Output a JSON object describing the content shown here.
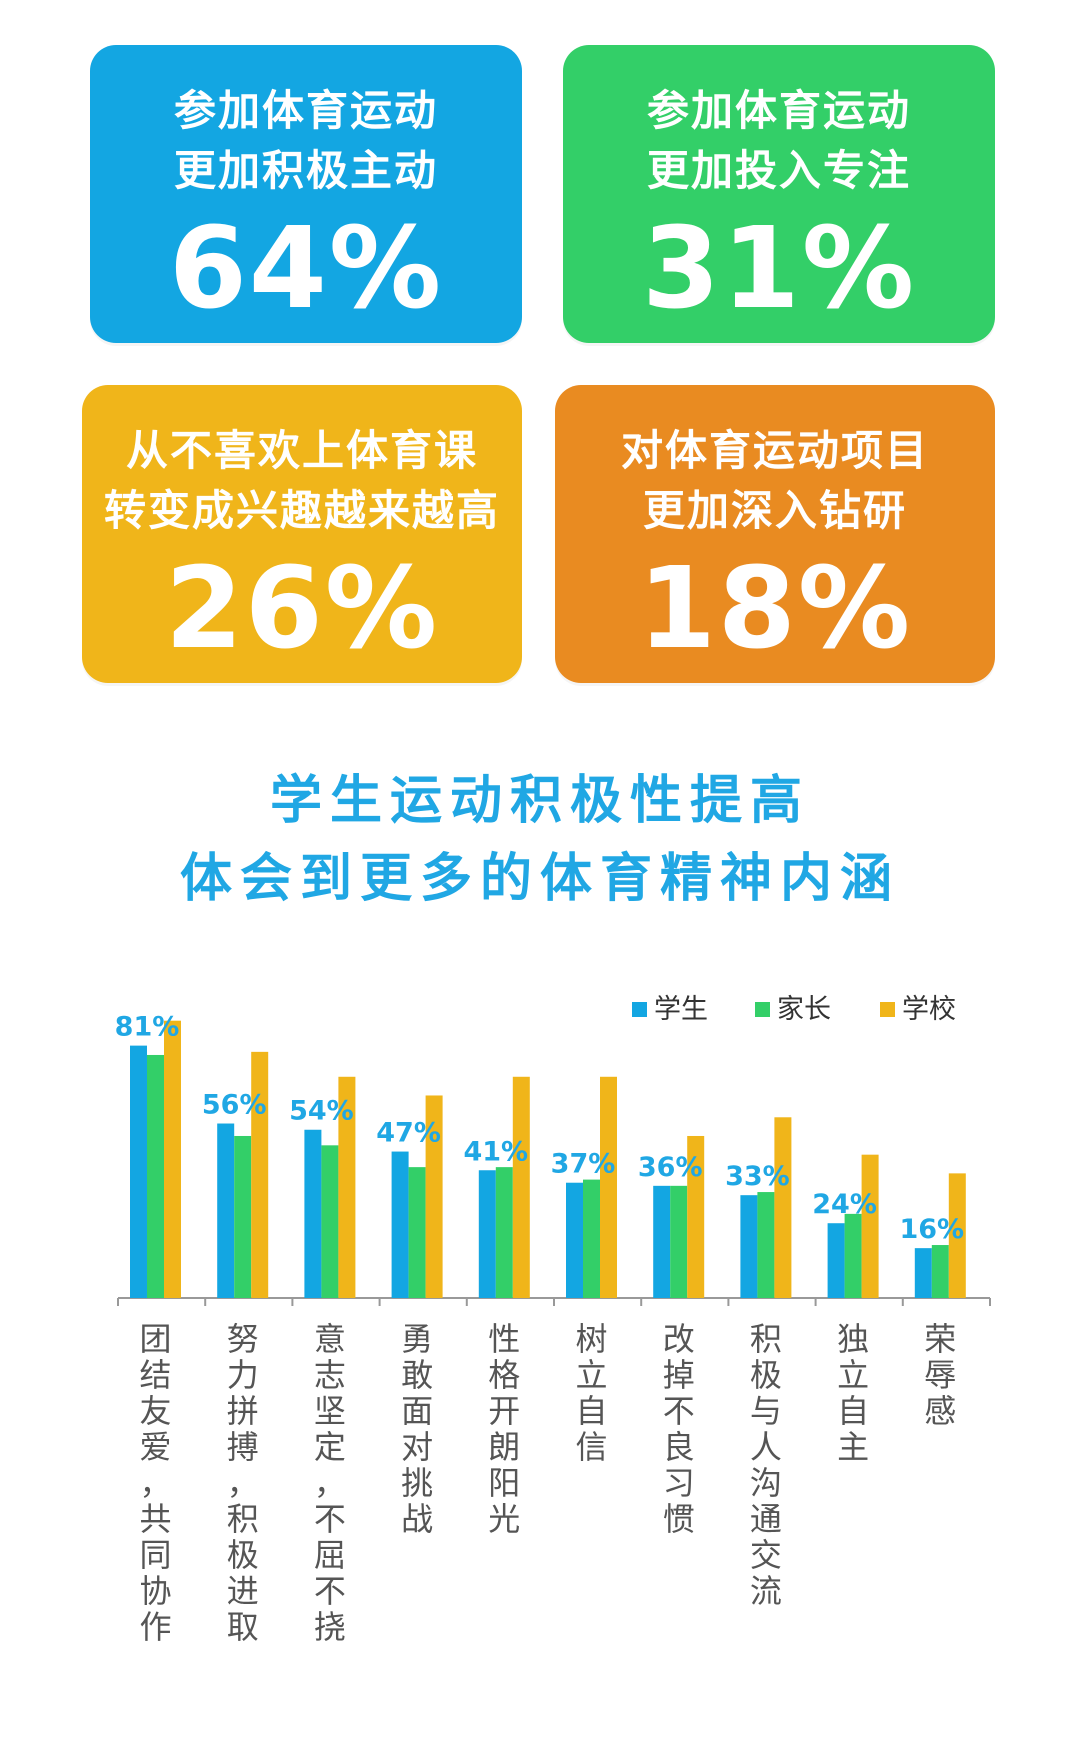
{
  "cards": [
    {
      "line1": "参加体育运动",
      "line2": "更加积极主动",
      "value": "64%",
      "color": "#13a6e2"
    },
    {
      "line1": "参加体育运动",
      "line2": "更加投入专注",
      "value": "31%",
      "color": "#33cf68"
    },
    {
      "line1": "从不喜欢上体育课",
      "line2": "转变成兴趣越来越高",
      "value": "26%",
      "color": "#f0b51a"
    },
    {
      "line1": "对体育运动项目",
      "line2": "更加深入钻研",
      "value": "18%",
      "color": "#e98b21"
    }
  ],
  "section_title": {
    "line1": "学生运动积极性提高",
    "line2": "体会到更多的体育精神内涵"
  },
  "chart_data": {
    "type": "bar",
    "categories": [
      "团结友爱，共同协作",
      "努力拼搏，积极进取",
      "意志坚定，不屈不挠",
      "勇敢面对挑战",
      "性格开朗阳光",
      "树立自信",
      "改掉不良习惯",
      "积极与人沟通交流",
      "独立自主",
      "荣辱感"
    ],
    "series": [
      {
        "name": "学生",
        "color": "#13a6e2",
        "values": [
          81,
          56,
          54,
          47,
          41,
          37,
          36,
          33,
          24,
          16
        ]
      },
      {
        "name": "家长",
        "color": "#33cf68",
        "values": [
          78,
          52,
          49,
          42,
          42,
          38,
          36,
          34,
          27,
          17
        ]
      },
      {
        "name": "学校",
        "color": "#f0b51a",
        "values": [
          89,
          79,
          71,
          65,
          71,
          71,
          52,
          58,
          46,
          40
        ]
      }
    ],
    "value_labels": [
      "81%",
      "56%",
      "54%",
      "47%",
      "41%",
      "37%",
      "36%",
      "33%",
      "24%",
      "16%"
    ],
    "ylim": [
      0,
      95
    ],
    "legend_position": "top-right",
    "grid": false
  }
}
